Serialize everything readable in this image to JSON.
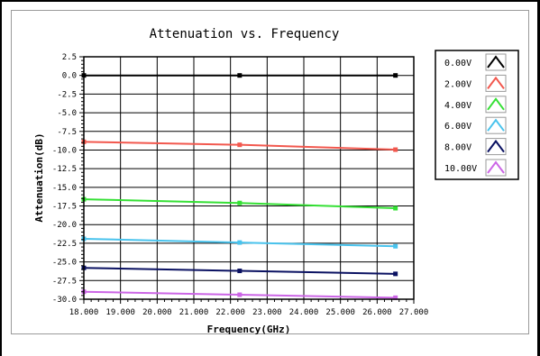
{
  "chart_data": {
    "type": "line",
    "title": "Attenuation vs. Frequency",
    "xlabel": "Frequency(GHz)",
    "ylabel": "Attenuation(dB)",
    "xlim": [
      18.0,
      27.0
    ],
    "ylim": [
      -30.0,
      2.5
    ],
    "xticks": [
      18.0,
      19.0,
      20.0,
      21.0,
      22.0,
      23.0,
      24.0,
      25.0,
      26.0,
      27.0
    ],
    "xtick_labels": [
      "18.000",
      "19.000",
      "20.000",
      "21.000",
      "22.000",
      "23.000",
      "24.000",
      "25.000",
      "26.000",
      "27.000"
    ],
    "yticks": [
      2.5,
      0.0,
      -2.5,
      -5.0,
      -7.5,
      -10.0,
      -12.5,
      -15.0,
      -17.5,
      -20.0,
      -22.5,
      -25.0,
      -27.5,
      -30.0
    ],
    "ytick_labels": [
      "2.5",
      "0.0",
      "-2.5",
      "-5.0",
      "-7.5",
      "-10.0",
      "-12.5",
      "-15.0",
      "-17.5",
      "-20.0",
      "-22.5",
      "-25.0",
      "-27.5",
      "-30.0"
    ],
    "grid": true,
    "legend_position": "right",
    "series": [
      {
        "name": "0.00V",
        "color": "#000000",
        "x": [
          18.0,
          22.25,
          26.5
        ],
        "y": [
          0.0,
          0.0,
          0.0
        ]
      },
      {
        "name": "2.00V",
        "color": "#f2584e",
        "x": [
          18.0,
          22.25,
          26.5
        ],
        "y": [
          -8.9,
          -9.3,
          -9.95
        ]
      },
      {
        "name": "4.00V",
        "color": "#35e035",
        "x": [
          18.0,
          22.25,
          26.5
        ],
        "y": [
          -16.6,
          -17.1,
          -17.8
        ]
      },
      {
        "name": "6.00V",
        "color": "#49c3ed",
        "x": [
          18.0,
          22.25,
          26.5
        ],
        "y": [
          -21.9,
          -22.4,
          -22.9
        ]
      },
      {
        "name": "8.00V",
        "color": "#0b1262",
        "x": [
          18.0,
          22.25,
          26.5
        ],
        "y": [
          -25.8,
          -26.2,
          -26.6
        ]
      },
      {
        "name": "10.00V",
        "color": "#cc66e6",
        "x": [
          18.0,
          22.25,
          26.5
        ],
        "y": [
          -29.0,
          -29.4,
          -29.8
        ]
      }
    ]
  }
}
